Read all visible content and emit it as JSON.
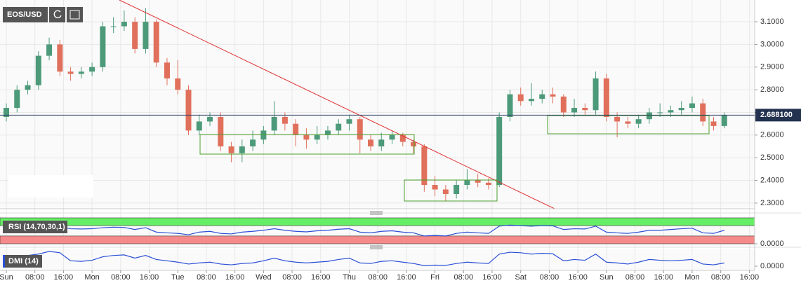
{
  "chart_data": [
    {
      "type": "candlestick",
      "title": "EOS/USD",
      "x": [
        0,
        3,
        6,
        9,
        12,
        15,
        18,
        21,
        24,
        27,
        30,
        33,
        36,
        39,
        42,
        45,
        48,
        51,
        54,
        57,
        60,
        63,
        66,
        69,
        72,
        75,
        78,
        81,
        84,
        87,
        90,
        93,
        96,
        99,
        102,
        105,
        108,
        111,
        114,
        117,
        120,
        123,
        126,
        129,
        132,
        135,
        138,
        141,
        144,
        147,
        150,
        153,
        156,
        159,
        162,
        165,
        168,
        171,
        174,
        177,
        180,
        183,
        186,
        189,
        192,
        195,
        198,
        201
      ],
      "open": [
        2.68,
        2.72,
        2.8,
        2.82,
        2.95,
        3.0,
        2.88,
        2.87,
        2.88,
        2.9,
        3.08,
        3.08,
        3.1,
        2.98,
        3.1,
        2.92,
        2.85,
        2.8,
        2.62,
        2.66,
        2.68,
        2.55,
        2.52,
        2.55,
        2.58,
        2.62,
        2.68,
        2.65,
        2.6,
        2.58,
        2.6,
        2.62,
        2.65,
        2.67,
        2.58,
        2.55,
        2.58,
        2.6,
        2.57,
        2.55,
        2.38,
        2.36,
        2.34,
        2.38,
        2.4,
        2.39,
        2.38,
        2.68,
        2.78,
        2.75,
        2.76,
        2.78,
        2.77,
        2.7,
        2.72,
        2.71,
        2.85,
        2.68,
        2.66,
        2.65,
        2.67,
        2.7,
        2.7,
        2.71,
        2.72,
        2.74,
        2.66,
        2.64
      ],
      "high": [
        2.74,
        2.82,
        2.84,
        2.97,
        3.03,
        3.02,
        2.9,
        2.9,
        2.92,
        3.1,
        3.12,
        3.15,
        3.12,
        3.16,
        3.11,
        2.94,
        2.93,
        2.82,
        2.69,
        2.7,
        2.7,
        2.57,
        2.58,
        2.62,
        2.64,
        2.75,
        2.7,
        2.67,
        2.63,
        2.64,
        2.64,
        2.67,
        2.69,
        2.68,
        2.6,
        2.61,
        2.62,
        2.61,
        2.58,
        2.56,
        2.42,
        2.38,
        2.4,
        2.45,
        2.43,
        2.41,
        2.7,
        2.8,
        2.81,
        2.83,
        2.8,
        2.81,
        2.78,
        2.76,
        2.74,
        2.88,
        2.87,
        2.7,
        2.68,
        2.69,
        2.72,
        2.74,
        2.73,
        2.75,
        2.77,
        2.76,
        2.68,
        2.7
      ],
      "low": [
        2.66,
        2.7,
        2.78,
        2.8,
        2.93,
        2.86,
        2.84,
        2.85,
        2.86,
        2.88,
        3.05,
        3.06,
        2.96,
        2.96,
        2.9,
        2.82,
        2.78,
        2.6,
        2.6,
        2.64,
        2.53,
        2.48,
        2.48,
        2.53,
        2.56,
        2.6,
        2.62,
        2.55,
        2.54,
        2.56,
        2.58,
        2.6,
        2.62,
        2.52,
        2.53,
        2.53,
        2.56,
        2.55,
        2.52,
        2.35,
        2.33,
        2.31,
        2.32,
        2.36,
        2.37,
        2.36,
        2.37,
        2.66,
        2.73,
        2.73,
        2.74,
        2.74,
        2.68,
        2.68,
        2.69,
        2.69,
        2.66,
        2.59,
        2.63,
        2.63,
        2.65,
        2.68,
        2.68,
        2.69,
        2.7,
        2.64,
        2.62,
        2.63
      ],
      "close": [
        2.72,
        2.8,
        2.82,
        2.95,
        3.0,
        2.88,
        2.87,
        2.88,
        2.9,
        3.08,
        3.08,
        3.1,
        2.98,
        3.1,
        2.92,
        2.85,
        2.8,
        2.62,
        2.66,
        2.68,
        2.55,
        2.52,
        2.55,
        2.58,
        2.62,
        2.68,
        2.65,
        2.6,
        2.58,
        2.6,
        2.62,
        2.65,
        2.67,
        2.58,
        2.55,
        2.58,
        2.6,
        2.57,
        2.55,
        2.38,
        2.36,
        2.34,
        2.38,
        2.4,
        2.39,
        2.38,
        2.68,
        2.78,
        2.75,
        2.76,
        2.78,
        2.77,
        2.7,
        2.72,
        2.71,
        2.85,
        2.68,
        2.66,
        2.65,
        2.67,
        2.7,
        2.7,
        2.71,
        2.72,
        2.74,
        2.66,
        2.64,
        2.688
      ],
      "up_color": "#4c9a7a",
      "down_color": "#e0705c",
      "grid": true,
      "xlim": [
        -1.77,
        209.5
      ],
      "ylim": [
        2.275,
        3.196
      ],
      "xticks": [
        {
          "value": 0,
          "label": "Sun"
        },
        {
          "value": 8,
          "label": "08:00"
        },
        {
          "value": 16,
          "label": "16:00"
        },
        {
          "value": 24,
          "label": "Mon"
        },
        {
          "value": 32,
          "label": "08:00"
        },
        {
          "value": 40,
          "label": "16:00"
        },
        {
          "value": 48,
          "label": "Tue"
        },
        {
          "value": 56,
          "label": "08:00"
        },
        {
          "value": 64,
          "label": "16:00"
        },
        {
          "value": 72,
          "label": "Wed"
        },
        {
          "value": 80,
          "label": "08:00"
        },
        {
          "value": 88,
          "label": "16:00"
        },
        {
          "value": 96,
          "label": "Thu"
        },
        {
          "value": 104,
          "label": "08:00"
        },
        {
          "value": 112,
          "label": "16:00"
        },
        {
          "value": 120,
          "label": "Fri"
        },
        {
          "value": 128,
          "label": "08:00"
        },
        {
          "value": 136,
          "label": "16:00"
        },
        {
          "value": 144,
          "label": "Sat"
        },
        {
          "value": 152,
          "label": "08:00"
        },
        {
          "value": 160,
          "label": "16:00"
        },
        {
          "value": 168,
          "label": "Sun"
        },
        {
          "value": 176,
          "label": "08:00"
        },
        {
          "value": 184,
          "label": "16:00"
        },
        {
          "value": 192,
          "label": "Mon"
        },
        {
          "value": 200,
          "label": "08:00"
        },
        {
          "value": 208,
          "label": "16:00"
        }
      ],
      "yticks": [
        {
          "value": 2.3,
          "label": "2.3000"
        },
        {
          "value": 2.4,
          "label": "2.4000"
        },
        {
          "value": 2.5,
          "label": "2.5000"
        },
        {
          "value": 2.6,
          "label": "2.6000"
        },
        {
          "value": 2.7,
          "label": "2.7000"
        },
        {
          "value": 2.8,
          "label": "2.8000"
        },
        {
          "value": 2.9,
          "label": "2.9000"
        },
        {
          "value": 3.0,
          "label": "3.0000"
        },
        {
          "value": 3.1,
          "label": "3.1000"
        }
      ],
      "last_price": {
        "value": 2.6881,
        "label": "2.688100"
      }
    },
    {
      "type": "line",
      "title": "RSI (14,70,30,1)",
      "color": "#2a4fd6",
      "values": [
        55,
        62,
        63,
        60,
        65,
        66,
        58,
        57,
        58,
        62,
        64,
        63,
        55,
        62,
        45,
        42,
        40,
        35,
        45,
        48,
        40,
        38,
        45,
        48,
        52,
        58,
        52,
        48,
        46,
        50,
        52,
        56,
        58,
        45,
        42,
        48,
        50,
        45,
        42,
        30,
        32,
        30,
        40,
        45,
        42,
        40,
        68,
        72,
        70,
        68,
        70,
        69,
        55,
        58,
        57,
        68,
        45,
        42,
        40,
        45,
        52,
        52,
        55,
        58,
        60,
        42,
        40,
        52
      ],
      "bands": [
        {
          "from": 70,
          "to": 100,
          "color": "#66ee66"
        },
        {
          "from": 0,
          "to": 30,
          "color": "#f58a8a"
        }
      ],
      "ylim": [
        0,
        100
      ],
      "yticks": [
        {
          "value": 0,
          "label": "0.0000"
        }
      ]
    },
    {
      "type": "line",
      "title": "DMI (14)",
      "color": "#2a4fd6",
      "values": [
        20,
        35,
        40,
        45,
        55,
        50,
        20,
        18,
        22,
        35,
        40,
        42,
        30,
        40,
        25,
        20,
        15,
        8,
        12,
        15,
        8,
        5,
        10,
        12,
        20,
        30,
        20,
        15,
        12,
        15,
        18,
        25,
        30,
        12,
        10,
        18,
        20,
        15,
        10,
        2,
        4,
        3,
        10,
        15,
        12,
        10,
        45,
        52,
        50,
        45,
        48,
        46,
        20,
        25,
        22,
        45,
        15,
        12,
        8,
        15,
        25,
        22,
        20,
        22,
        25,
        8,
        5,
        12
      ],
      "ylim": [
        0,
        60
      ],
      "yticks": [
        {
          "value": 0,
          "label": "0.0000"
        }
      ]
    }
  ]
}
